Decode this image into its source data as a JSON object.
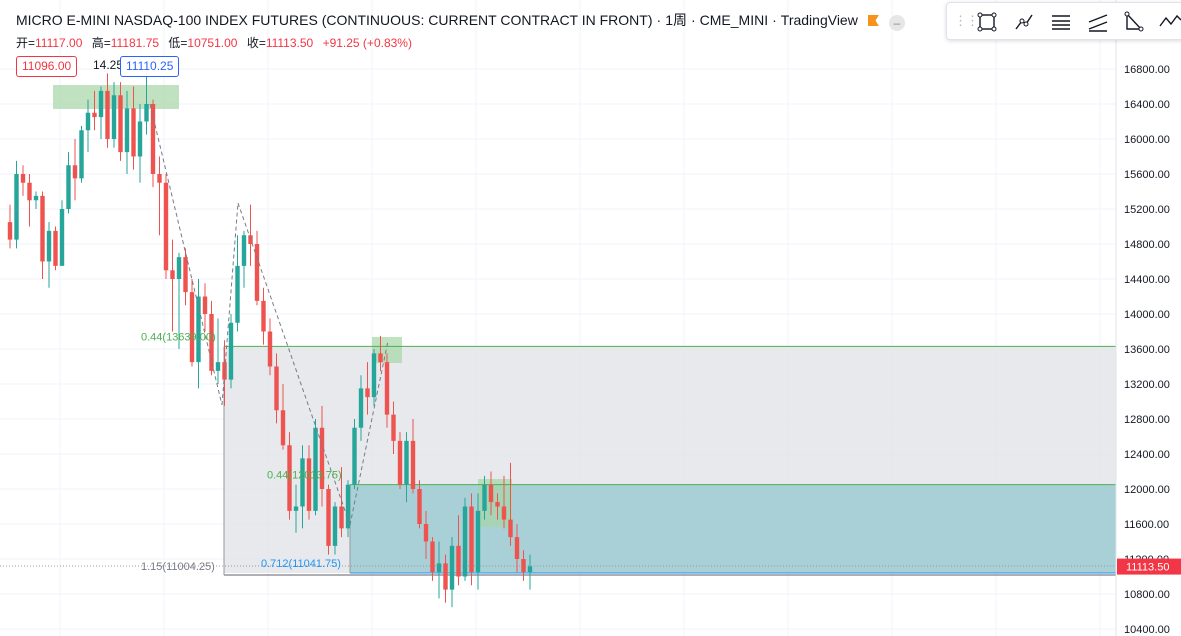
{
  "header": {
    "symbol": "MICRO E-MINI NASDAQ-100 INDEX FUTURES (CONTINUOUS: CURRENT CONTRACT IN FRONT)",
    "interval": "1周",
    "exchange": "CME_MINI",
    "platform": "TradingView"
  },
  "ohlc": {
    "open_label": "开=",
    "open": "11117.00",
    "high_label": "高=",
    "high": "11181.75",
    "low_label": "低=",
    "low": "10751.00",
    "close_label": "收=",
    "close": "11113.50",
    "change": "+91.25 (+0.83%)"
  },
  "quote": {
    "sell": "11096.00",
    "spread": "14.25",
    "buy": "11110.25"
  },
  "toolbar": {
    "tools": [
      "rectangle-tool-icon",
      "trend-line-tool-icon",
      "fib-retracement-tool-icon",
      "parallel-channel-tool-icon",
      "triangle-pattern-tool-icon",
      "path-tool-icon"
    ]
  },
  "colors": {
    "up": "#26a69a",
    "down": "#ef5350",
    "price_label_bg": "#f23645",
    "gray_zone": "#dfe1e6",
    "blue_zone": "#9dcbd4",
    "green_box": "#a5d6a7"
  },
  "chart_data": {
    "type": "candlestick",
    "title": "MICRO E-MINI NASDAQ-100 INDEX FUTURES (CONTINUOUS: CURRENT CONTRACT IN FRONT)",
    "y_ticks": [
      "16800.00",
      "16400.00",
      "16000.00",
      "15600.00",
      "15200.00",
      "14800.00",
      "14400.00",
      "14000.00",
      "13600.00",
      "13200.00",
      "12800.00",
      "12400.00",
      "12000.00",
      "11600.00",
      "11200.00",
      "10800.00",
      "10400.00"
    ],
    "ylim": [
      10400,
      17200
    ],
    "last_price": "11113.50",
    "annotations": [
      {
        "text": "0.44(13639.00)",
        "color": "#4caf50",
        "price": 13639
      },
      {
        "text": "0.44(12013.75)",
        "color": "#4caf50",
        "price": 12014
      },
      {
        "text": "0.712(11041.75)",
        "color": "#2196f3",
        "price": 11042
      },
      {
        "text": "1.15(11004.25)",
        "color": "#787b86",
        "price": 11004
      }
    ],
    "levels": [
      {
        "name": "resistance-line",
        "price": 13630
      },
      {
        "name": "blue-zone-top",
        "price": 12050
      },
      {
        "name": "blue-zone-bottom",
        "price": 11040
      }
    ],
    "candles": [
      [
        15050,
        15250,
        14750,
        14850
      ],
      [
        14850,
        15750,
        14750,
        15600
      ],
      [
        15600,
        15700,
        15350,
        15500
      ],
      [
        15500,
        15600,
        15000,
        15300
      ],
      [
        15300,
        15400,
        15200,
        15350
      ],
      [
        15350,
        15400,
        14400,
        14600
      ],
      [
        14600,
        15050,
        14300,
        14950
      ],
      [
        14950,
        15000,
        14500,
        14550
      ],
      [
        14550,
        15300,
        14600,
        15200
      ],
      [
        15200,
        15850,
        15150,
        15700
      ],
      [
        15700,
        16000,
        15300,
        15550
      ],
      [
        15550,
        16150,
        15500,
        16100
      ],
      [
        16100,
        16450,
        15850,
        16300
      ],
      [
        16300,
        16550,
        16100,
        16250
      ],
      [
        16250,
        16600,
        16000,
        16550
      ],
      [
        16550,
        16750,
        15900,
        16000
      ],
      [
        16000,
        16650,
        15900,
        16500
      ],
      [
        16500,
        16650,
        15750,
        15850
      ],
      [
        15850,
        16550,
        15600,
        16350
      ],
      [
        16350,
        16600,
        15650,
        15800
      ],
      [
        15800,
        16400,
        15500,
        16200
      ],
      [
        16200,
        16750,
        16050,
        16400
      ],
      [
        16400,
        16450,
        15450,
        15600
      ],
      [
        15600,
        15800,
        14900,
        15500
      ],
      [
        15500,
        15600,
        14400,
        14500
      ],
      [
        14500,
        14850,
        13800,
        14400
      ],
      [
        14400,
        14700,
        13600,
        14650
      ],
      [
        14650,
        14750,
        14100,
        14250
      ],
      [
        14250,
        14400,
        13400,
        13450
      ],
      [
        13450,
        14400,
        13150,
        14200
      ],
      [
        14200,
        14350,
        13800,
        14000
      ],
      [
        14000,
        14150,
        13300,
        13350
      ],
      [
        13350,
        13950,
        13200,
        13450
      ],
      [
        13450,
        13700,
        12950,
        13250
      ],
      [
        13250,
        14000,
        13150,
        13900
      ],
      [
        13900,
        14900,
        13800,
        14550
      ],
      [
        14550,
        14950,
        14300,
        14900
      ],
      [
        14900,
        15250,
        14550,
        14800
      ],
      [
        14800,
        14950,
        14100,
        14150
      ],
      [
        14150,
        14300,
        13650,
        13800
      ],
      [
        13800,
        13950,
        13300,
        13400
      ],
      [
        13400,
        13550,
        12750,
        12900
      ],
      [
        12900,
        13200,
        12450,
        12500
      ],
      [
        12500,
        12650,
        11650,
        11750
      ],
      [
        11750,
        12050,
        11500,
        11800
      ],
      [
        11800,
        12500,
        11550,
        12350
      ],
      [
        12350,
        12500,
        11650,
        11750
      ],
      [
        11750,
        12800,
        11700,
        12700
      ],
      [
        12700,
        12950,
        11800,
        12000
      ],
      [
        12000,
        12050,
        11250,
        11350
      ],
      [
        11350,
        11850,
        11250,
        11800
      ],
      [
        11800,
        12250,
        11450,
        11550
      ],
      [
        11550,
        12100,
        11450,
        12050
      ],
      [
        12050,
        12800,
        12000,
        12700
      ],
      [
        12700,
        13300,
        12550,
        13150
      ],
      [
        13150,
        13450,
        12850,
        13050
      ],
      [
        13050,
        13600,
        12950,
        13550
      ],
      [
        13550,
        13750,
        13350,
        13450
      ],
      [
        13450,
        13550,
        12700,
        12850
      ],
      [
        12850,
        13000,
        12400,
        12550
      ],
      [
        12550,
        12650,
        12000,
        12050
      ],
      [
        12050,
        12650,
        11850,
        12550
      ],
      [
        12550,
        12800,
        11950,
        12000
      ],
      [
        12000,
        12100,
        11550,
        11600
      ],
      [
        11600,
        11750,
        11200,
        11400
      ],
      [
        11400,
        11450,
        10950,
        11050
      ],
      [
        11050,
        11400,
        10750,
        11150
      ],
      [
        11150,
        11250,
        10700,
        10850
      ],
      [
        10850,
        11450,
        10650,
        11350
      ],
      [
        11350,
        11700,
        10900,
        11000
      ],
      [
        11000,
        11900,
        10950,
        11800
      ],
      [
        11800,
        11950,
        10900,
        11050
      ],
      [
        11050,
        11950,
        10850,
        11750
      ],
      [
        11750,
        12150,
        11650,
        12050
      ],
      [
        12050,
        12200,
        11700,
        11850
      ],
      [
        11850,
        11950,
        11650,
        11800
      ],
      [
        11800,
        12150,
        11550,
        11650
      ],
      [
        11650,
        12300,
        11350,
        11450
      ],
      [
        11450,
        11600,
        11050,
        11200
      ],
      [
        11200,
        11300,
        10950,
        11050
      ],
      [
        11050,
        11250,
        10850,
        11117
      ]
    ]
  }
}
